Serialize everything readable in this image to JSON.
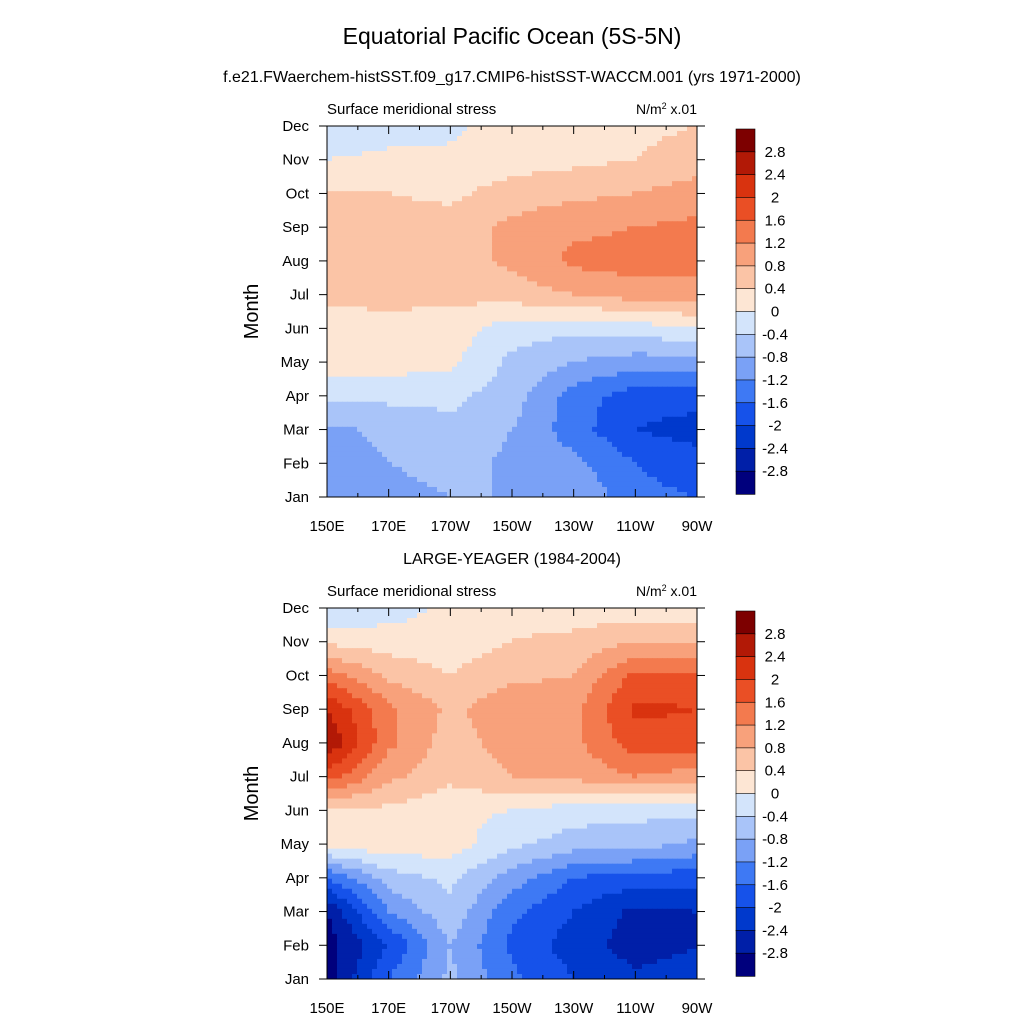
{
  "title": "Equatorial Pacific Ocean (5S-5N)",
  "subtitle": "f.e21.FWaerchem-histSST.f09_g17.CMIP6-histSST-WACCM.001 (yrs 1971-2000)",
  "units": "N/m² x.01",
  "colors": {
    "levels": [
      "#00007d",
      "#001fa8",
      "#0039cc",
      "#1652ea",
      "#3e79f4",
      "#7aa1f6",
      "#a9c4f9",
      "#d3e4fb",
      "#fde6d4",
      "#fbc4a6",
      "#f8a17b",
      "#f37a4e",
      "#ea4f25",
      "#d9330f",
      "#b21906",
      "#7d0000"
    ]
  },
  "colorbar": {
    "labels": [
      "2.8",
      "2.4",
      "2",
      "1.6",
      "1.2",
      "0.8",
      "0.4",
      "0",
      "-0.4",
      "-0.8",
      "-1.2",
      "-1.6",
      "-2",
      "-2.4",
      "-2.8"
    ]
  },
  "chart_data": [
    {
      "type": "heatmap",
      "panel_title": "",
      "left_label": "Surface meridional stress",
      "right_label": "N/m² x.01",
      "ylabel": "Month",
      "x": [
        "150E",
        "170E",
        "170W",
        "150W",
        "130W",
        "110W",
        "90W"
      ],
      "y": [
        "Jan",
        "Feb",
        "Mar",
        "Apr",
        "May",
        "Jun",
        "Jul",
        "Aug",
        "Sep",
        "Oct",
        "Nov",
        "Dec"
      ],
      "contour_levels": [
        -2.8,
        -2.4,
        -2.0,
        -1.6,
        -1.2,
        -0.8,
        -0.4,
        0,
        0.4,
        0.8,
        1.2,
        1.6,
        2.0,
        2.4,
        2.8
      ],
      "values": [
        [
          -1.0,
          -1.0,
          -0.8,
          -0.8,
          -0.8,
          -1.5,
          -1.6
        ],
        [
          -1.0,
          -0.8,
          -0.6,
          -0.9,
          -1.1,
          -1.6,
          -1.8
        ],
        [
          -0.9,
          -0.7,
          -0.5,
          -0.8,
          -1.4,
          -2.0,
          -2.2
        ],
        [
          -0.3,
          -0.3,
          -0.3,
          -0.6,
          -1.4,
          -1.8,
          -1.8
        ],
        [
          0.2,
          0.2,
          0.1,
          -0.5,
          -0.8,
          -1.0,
          -1.0
        ],
        [
          0.2,
          0.3,
          0.2,
          -0.2,
          -0.3,
          -0.2,
          0.0
        ],
        [
          0.5,
          0.5,
          0.5,
          0.6,
          0.8,
          1.0,
          1.0
        ],
        [
          0.8,
          0.6,
          0.6,
          0.9,
          1.3,
          1.4,
          1.4
        ],
        [
          0.7,
          0.6,
          0.6,
          0.9,
          1.1,
          1.2,
          1.3
        ],
        [
          0.4,
          0.4,
          0.3,
          0.6,
          0.7,
          0.8,
          1.0
        ],
        [
          0.0,
          0.1,
          0.1,
          0.2,
          0.3,
          0.4,
          0.6
        ],
        [
          -0.3,
          -0.2,
          -0.1,
          0.2,
          0.3,
          0.3,
          0.4
        ]
      ]
    },
    {
      "type": "heatmap",
      "panel_title": "LARGE-YEAGER (1984-2004)",
      "left_label": "Surface meridional stress",
      "right_label": "N/m² x.01",
      "ylabel": "Month",
      "x": [
        "150E",
        "170E",
        "170W",
        "150W",
        "130W",
        "110W",
        "90W"
      ],
      "y": [
        "Jan",
        "Feb",
        "Mar",
        "Apr",
        "May",
        "Jun",
        "Jul",
        "Aug",
        "Sep",
        "Oct",
        "Nov",
        "Dec"
      ],
      "contour_levels": [
        -2.8,
        -2.4,
        -2.0,
        -1.6,
        -1.2,
        -0.8,
        -0.4,
        0,
        0.4,
        0.8,
        1.2,
        1.6,
        2.0,
        2.4,
        2.8
      ],
      "values": [
        [
          -3.0,
          -1.6,
          -0.7,
          -1.5,
          -2.0,
          -2.3,
          -2.2
        ],
        [
          -3.0,
          -2.0,
          -0.8,
          -1.7,
          -2.2,
          -2.6,
          -2.4
        ],
        [
          -2.8,
          -1.2,
          -0.5,
          -1.5,
          -2.0,
          -2.5,
          -2.4
        ],
        [
          -1.6,
          -0.6,
          -0.3,
          -1.0,
          -1.6,
          -1.8,
          -1.8
        ],
        [
          0.2,
          0.3,
          0.2,
          -0.3,
          -0.6,
          -0.6,
          -0.9
        ],
        [
          0.4,
          0.3,
          0.1,
          0.0,
          -0.2,
          -0.3,
          -0.2
        ],
        [
          1.8,
          0.9,
          0.5,
          0.8,
          0.9,
          1.2,
          1.0
        ],
        [
          2.8,
          1.3,
          0.6,
          1.0,
          1.1,
          1.8,
          1.8
        ],
        [
          2.4,
          1.3,
          0.7,
          1.1,
          1.1,
          2.1,
          2.0
        ],
        [
          1.4,
          0.7,
          0.4,
          0.7,
          0.8,
          1.7,
          1.7
        ],
        [
          0.3,
          0.2,
          0.2,
          0.4,
          0.5,
          0.8,
          0.8
        ],
        [
          -0.4,
          -0.2,
          0.1,
          0.3,
          0.2,
          0.1,
          0.1
        ]
      ]
    }
  ]
}
